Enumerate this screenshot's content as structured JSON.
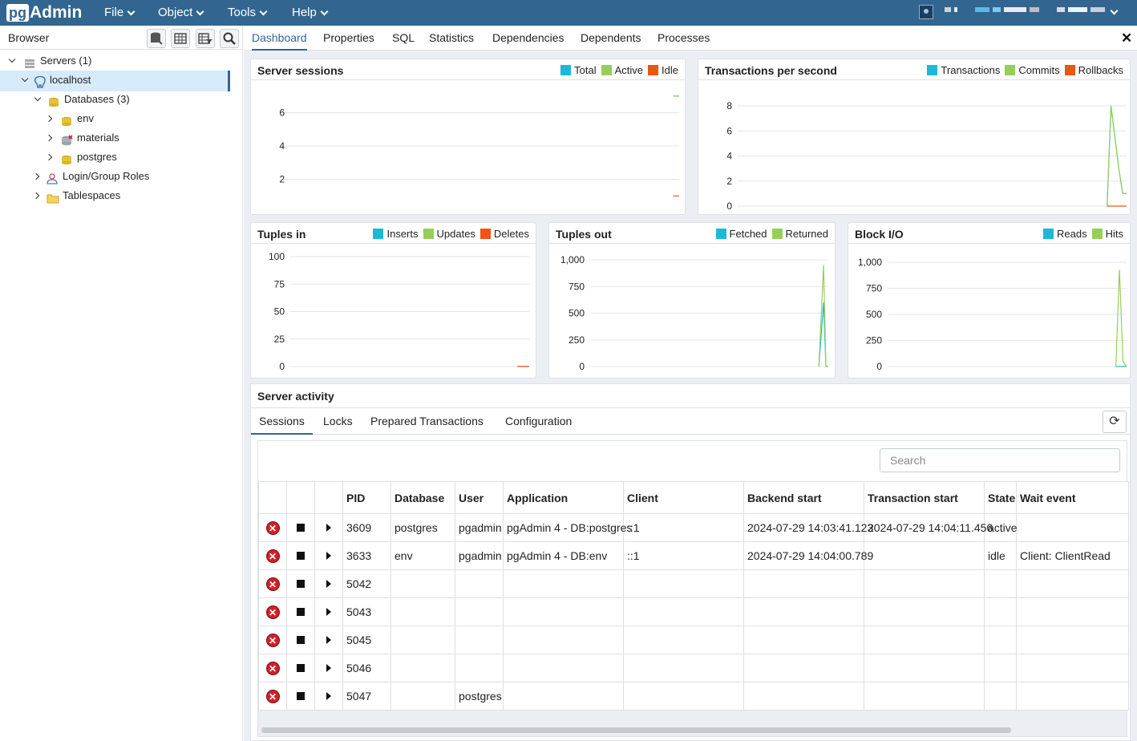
{
  "app": {
    "logo_pg": "pg",
    "logo_admin": "Admin"
  },
  "menu": [
    {
      "label": "File"
    },
    {
      "label": "Object"
    },
    {
      "label": "Tools"
    },
    {
      "label": "Help"
    }
  ],
  "browser": {
    "title": "Browser",
    "tree": [
      {
        "label": "Servers (1)"
      },
      {
        "label": "localhost"
      },
      {
        "label": "Databases (3)"
      },
      {
        "label": "env"
      },
      {
        "label": "materials"
      },
      {
        "label": "postgres"
      },
      {
        "label": "Login/Group Roles"
      },
      {
        "label": "Tablespaces"
      }
    ]
  },
  "tabs": [
    {
      "label": "Dashboard"
    },
    {
      "label": "Properties"
    },
    {
      "label": "SQL"
    },
    {
      "label": "Statistics"
    },
    {
      "label": "Dependencies"
    },
    {
      "label": "Dependents"
    },
    {
      "label": "Processes"
    }
  ],
  "close_label": "✕",
  "colors": {
    "teal": "#1ab9d8",
    "green": "#96cf58",
    "red": "#ed5516",
    "brand": "#326690"
  },
  "panels": {
    "sessions": {
      "title": "Server sessions",
      "legend": [
        "Total",
        "Active",
        "Idle"
      ]
    },
    "tps": {
      "title": "Transactions per second",
      "legend": [
        "Transactions",
        "Commits",
        "Rollbacks"
      ]
    },
    "tuples_in": {
      "title": "Tuples in",
      "legend": [
        "Inserts",
        "Updates",
        "Deletes"
      ]
    },
    "tuples_out": {
      "title": "Tuples out",
      "legend": [
        "Fetched",
        "Returned"
      ]
    },
    "block_io": {
      "title": "Block I/O",
      "legend": [
        "Reads",
        "Hits"
      ]
    }
  },
  "chart_data": [
    {
      "type": "line",
      "title": "Server sessions",
      "ylim": [
        0,
        8
      ],
      "yticks": [
        "6",
        "4",
        "2"
      ],
      "series": [
        {
          "name": "Total",
          "values": [
            7,
            7
          ]
        },
        {
          "name": "Active",
          "values": [
            7,
            7
          ]
        },
        {
          "name": "Idle",
          "values": [
            1,
            1
          ]
        }
      ]
    },
    {
      "type": "line",
      "title": "Transactions per second",
      "ylim": [
        0,
        8
      ],
      "yticks": [
        "8",
        "6",
        "4",
        "2",
        "0"
      ],
      "series": [
        {
          "name": "Transactions",
          "values": [
            0,
            8,
            3,
            1,
            1
          ]
        },
        {
          "name": "Commits",
          "values": [
            0,
            8,
            3,
            1,
            1
          ]
        },
        {
          "name": "Rollbacks",
          "values": [
            0,
            0,
            0,
            0,
            0
          ]
        }
      ]
    },
    {
      "type": "line",
      "title": "Tuples in",
      "ylim": [
        0,
        100
      ],
      "yticks": [
        "100",
        "75",
        "50",
        "25",
        "0"
      ],
      "series": [
        {
          "name": "Inserts",
          "values": [
            0,
            0
          ]
        },
        {
          "name": "Updates",
          "values": [
            0,
            0
          ]
        },
        {
          "name": "Deletes",
          "values": [
            0,
            0
          ]
        }
      ]
    },
    {
      "type": "line",
      "title": "Tuples out",
      "ylim": [
        0,
        1000
      ],
      "yticks": [
        "1,000",
        "750",
        "500",
        "250",
        "0"
      ],
      "series": [
        {
          "name": "Fetched",
          "values": [
            0,
            600,
            0,
            0
          ]
        },
        {
          "name": "Returned",
          "values": [
            0,
            950,
            0,
            0
          ]
        }
      ]
    },
    {
      "type": "line",
      "title": "Block I/O",
      "ylim": [
        0,
        1000
      ],
      "yticks": [
        "1,000",
        "750",
        "500",
        "250",
        "0"
      ],
      "series": [
        {
          "name": "Reads",
          "values": [
            0,
            0,
            0,
            0
          ]
        },
        {
          "name": "Hits",
          "values": [
            0,
            930,
            50,
            0
          ]
        }
      ]
    }
  ],
  "activity": {
    "title": "Server activity",
    "subtabs": [
      {
        "label": "Sessions"
      },
      {
        "label": "Locks"
      },
      {
        "label": "Prepared Transactions"
      },
      {
        "label": "Configuration"
      }
    ],
    "refresh_icon": "⟳",
    "search_placeholder": "Search",
    "columns": [
      "PID",
      "Database",
      "User",
      "Application",
      "Client",
      "Backend start",
      "Transaction start",
      "State",
      "Wait event"
    ],
    "rows": [
      [
        "3609",
        "postgres",
        "pgadmin",
        "pgAdmin 4 - DB:postgres",
        "::1",
        "2024-07-29 14:03:41.123",
        "2024-07-29 14:04:11.456",
        "active",
        ""
      ],
      [
        "3633",
        "env",
        "pgadmin",
        "pgAdmin 4 - DB:env",
        "::1",
        "2024-07-29 14:04:00.789",
        "",
        "idle",
        "Client: ClientRead"
      ],
      [
        "5042",
        "",
        "",
        "",
        "",
        "",
        "",
        "",
        ""
      ],
      [
        "5043",
        "",
        "",
        "",
        "",
        "",
        "",
        "",
        ""
      ],
      [
        "5045",
        "",
        "",
        "",
        "",
        "",
        "",
        "",
        ""
      ],
      [
        "5046",
        "",
        "",
        "",
        "",
        "",
        "",
        "",
        ""
      ],
      [
        "5047",
        "",
        "postgres",
        "",
        "",
        "",
        "",
        "",
        ""
      ]
    ]
  }
}
